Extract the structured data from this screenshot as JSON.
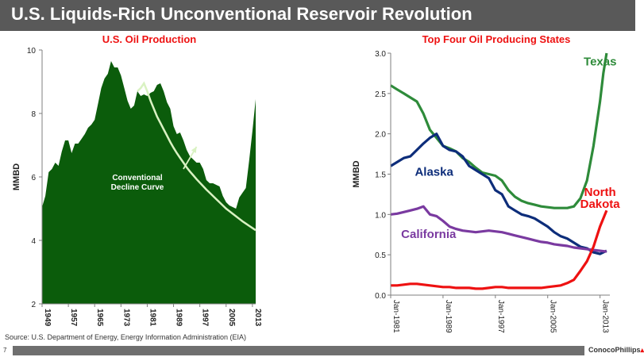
{
  "page": {
    "title": "U.S. Liquids-Rich Unconventional Reservoir Revolution",
    "source": "Source: U.S. Department of Energy, Energy Information Administration (EIA)",
    "page_number": "7",
    "logo_text": "ConocoPhillips",
    "colors": {
      "title_bar": "#595959",
      "chart_title": "#ee1111",
      "footer_bar": "#6f6f6f"
    }
  },
  "chart_data": [
    {
      "type": "area",
      "title": "U.S. Oil Production",
      "ylabel": "MMBD",
      "xlabel": "",
      "ylim": [
        2,
        10
      ],
      "yticks": [
        "2",
        "4",
        "6",
        "8",
        "10"
      ],
      "xlim": [
        1949,
        2014
      ],
      "xticks": [
        "1949",
        "1957",
        "1965",
        "1973",
        "1981",
        "1989",
        "1997",
        "2005",
        "2013"
      ],
      "grid": false,
      "series": [
        {
          "color": "#0b5c0b",
          "x": [
            1949,
            1950,
            1951,
            1952,
            1953,
            1954,
            1955,
            1956,
            1957,
            1958,
            1959,
            1960,
            1961,
            1962,
            1963,
            1964,
            1965,
            1966,
            1967,
            1968,
            1969,
            1970,
            1971,
            1972,
            1973,
            1974,
            1975,
            1976,
            1977,
            1978,
            1979,
            1980,
            1981,
            1982,
            1983,
            1984,
            1985,
            1986,
            1987,
            1988,
            1989,
            1990,
            1991,
            1992,
            1993,
            1994,
            1995,
            1996,
            1997,
            1998,
            1999,
            2000,
            2001,
            2002,
            2003,
            2004,
            2005,
            2006,
            2007,
            2008,
            2009,
            2010,
            2011,
            2012,
            2013,
            2014
          ],
          "values": [
            5.05,
            5.4,
            6.15,
            6.25,
            6.45,
            6.35,
            6.8,
            7.15,
            7.15,
            6.75,
            7.05,
            7.05,
            7.2,
            7.35,
            7.55,
            7.65,
            7.8,
            8.3,
            8.8,
            9.1,
            9.25,
            9.65,
            9.45,
            9.45,
            9.2,
            8.8,
            8.4,
            8.15,
            8.25,
            8.7,
            8.55,
            8.6,
            8.55,
            8.65,
            8.7,
            8.9,
            8.95,
            8.7,
            8.35,
            8.15,
            7.6,
            7.35,
            7.4,
            7.15,
            6.85,
            6.65,
            6.55,
            6.45,
            6.45,
            6.25,
            5.9,
            5.8,
            5.8,
            5.75,
            5.7,
            5.4,
            5.2,
            5.1,
            5.05,
            5.0,
            5.35,
            5.5,
            5.65,
            6.5,
            7.45,
            8.45
          ]
        },
        {
          "name": "Conventional Decline Curve",
          "color": "#d9f2c2",
          "x": [
            1978,
            1979,
            1980,
            1981,
            1982,
            1983,
            1984,
            1985,
            1986,
            1987,
            1988,
            1989,
            1990,
            1991,
            1992,
            1993,
            1994,
            1995,
            1996,
            1997,
            1998,
            1999,
            2000,
            2001,
            2002,
            2003,
            2004,
            2005,
            2006,
            2007,
            2008,
            2009,
            2010,
            2011,
            2012,
            2013,
            2014
          ],
          "values": [
            8.7,
            8.8,
            8.95,
            8.7,
            8.4,
            8.15,
            7.9,
            7.7,
            7.5,
            7.3,
            7.1,
            6.92,
            6.75,
            6.6,
            6.45,
            6.3,
            6.17,
            6.05,
            5.93,
            5.82,
            5.71,
            5.6,
            5.5,
            5.4,
            5.3,
            5.2,
            5.1,
            5.0,
            4.92,
            4.84,
            4.76,
            4.68,
            4.6,
            4.53,
            4.46,
            4.39,
            4.32
          ]
        }
      ],
      "annotations": [
        {
          "text": "Conventional",
          "x": 1978,
          "y": 5.9
        },
        {
          "text": "Decline Curve",
          "x": 1978,
          "y": 5.6
        }
      ],
      "arrow": {
        "from": [
          1992,
          6.25
        ],
        "to": [
          1996,
          6.95
        ]
      }
    },
    {
      "type": "line",
      "title": "Top Four Oil Producing States",
      "ylabel": "MMBD",
      "xlabel": "",
      "ylim": [
        0,
        3.0
      ],
      "yticks": [
        "0.0",
        "0.5",
        "1.0",
        "1.5",
        "2.0",
        "2.5",
        "3.0"
      ],
      "xlim": [
        1981,
        2014.5
      ],
      "xticks": [
        "Jan-1981",
        "Jan-1989",
        "Jan-1997",
        "Jan-2005",
        "Jan-2013"
      ],
      "xtick_values": [
        1981,
        1989,
        1997,
        2005,
        2013
      ],
      "grid": false,
      "series": [
        {
          "name": "Texas",
          "color": "#2e8b3a",
          "x": [
            1981,
            1982,
            1983,
            1984,
            1985,
            1986,
            1987,
            1988,
            1989,
            1990,
            1991,
            1992,
            1993,
            1994,
            1995,
            1996,
            1997,
            1998,
            1999,
            2000,
            2001,
            2002,
            2003,
            2004,
            2005,
            2006,
            2007,
            2008,
            2009,
            2010,
            2011,
            2012,
            2013,
            2013.5,
            2014
          ],
          "values": [
            2.6,
            2.55,
            2.5,
            2.45,
            2.4,
            2.25,
            2.05,
            1.95,
            1.85,
            1.82,
            1.78,
            1.7,
            1.65,
            1.58,
            1.52,
            1.5,
            1.48,
            1.42,
            1.3,
            1.22,
            1.17,
            1.14,
            1.12,
            1.1,
            1.09,
            1.08,
            1.08,
            1.08,
            1.1,
            1.2,
            1.42,
            1.85,
            2.4,
            2.75,
            3.0
          ]
        },
        {
          "name": "Alaska",
          "color": "#0d2d7a",
          "x": [
            1981,
            1982,
            1983,
            1984,
            1985,
            1986,
            1987,
            1988,
            1989,
            1990,
            1991,
            1992,
            1993,
            1994,
            1995,
            1996,
            1997,
            1998,
            1999,
            2000,
            2001,
            2002,
            2003,
            2004,
            2005,
            2006,
            2007,
            2008,
            2009,
            2010,
            2011,
            2012,
            2013,
            2014
          ],
          "values": [
            1.6,
            1.65,
            1.7,
            1.72,
            1.8,
            1.88,
            1.95,
            2.0,
            1.85,
            1.8,
            1.78,
            1.72,
            1.6,
            1.55,
            1.5,
            1.45,
            1.3,
            1.25,
            1.1,
            1.05,
            1.0,
            0.98,
            0.95,
            0.9,
            0.85,
            0.78,
            0.73,
            0.7,
            0.65,
            0.6,
            0.58,
            0.53,
            0.51,
            0.55
          ]
        },
        {
          "name": "California",
          "color": "#7a3aa0",
          "x": [
            1981,
            1982,
            1983,
            1984,
            1985,
            1986,
            1987,
            1988,
            1989,
            1990,
            1991,
            1992,
            1993,
            1994,
            1995,
            1996,
            1997,
            1998,
            1999,
            2000,
            2001,
            2002,
            2003,
            2004,
            2005,
            2006,
            2007,
            2008,
            2009,
            2010,
            2011,
            2012,
            2013,
            2014
          ],
          "values": [
            1.0,
            1.01,
            1.03,
            1.05,
            1.07,
            1.1,
            1.0,
            0.98,
            0.92,
            0.85,
            0.82,
            0.8,
            0.79,
            0.78,
            0.79,
            0.8,
            0.79,
            0.78,
            0.76,
            0.74,
            0.72,
            0.7,
            0.68,
            0.66,
            0.65,
            0.63,
            0.62,
            0.61,
            0.59,
            0.58,
            0.57,
            0.56,
            0.55,
            0.54
          ]
        },
        {
          "name": "North Dakota",
          "color": "#ee1111",
          "x": [
            1981,
            1982,
            1983,
            1984,
            1985,
            1986,
            1987,
            1988,
            1989,
            1990,
            1991,
            1992,
            1993,
            1994,
            1995,
            1996,
            1997,
            1998,
            1999,
            2000,
            2001,
            2002,
            2003,
            2004,
            2005,
            2006,
            2007,
            2008,
            2009,
            2010,
            2011,
            2012,
            2013,
            2014
          ],
          "values": [
            0.12,
            0.12,
            0.13,
            0.14,
            0.14,
            0.13,
            0.12,
            0.11,
            0.1,
            0.1,
            0.09,
            0.09,
            0.09,
            0.08,
            0.08,
            0.09,
            0.1,
            0.1,
            0.09,
            0.09,
            0.09,
            0.09,
            0.09,
            0.09,
            0.1,
            0.11,
            0.12,
            0.15,
            0.19,
            0.3,
            0.42,
            0.6,
            0.85,
            1.05
          ]
        }
      ],
      "series_labels": [
        {
          "text": "Texas",
          "color": "#2e8b3a",
          "x": 2010.5,
          "y": 2.85
        },
        {
          "text": "Alaska",
          "color": "#0d2d7a",
          "x": 1984.7,
          "y": 1.48
        },
        {
          "text": "California",
          "color": "#7a3aa0",
          "x": 1982.6,
          "y": 0.71
        },
        {
          "text": "North",
          "color": "#ee1111",
          "x": 2013,
          "y": 1.23
        },
        {
          "text": "Dakota",
          "color": "#ee1111",
          "x": 2013,
          "y": 1.08
        }
      ]
    }
  ]
}
